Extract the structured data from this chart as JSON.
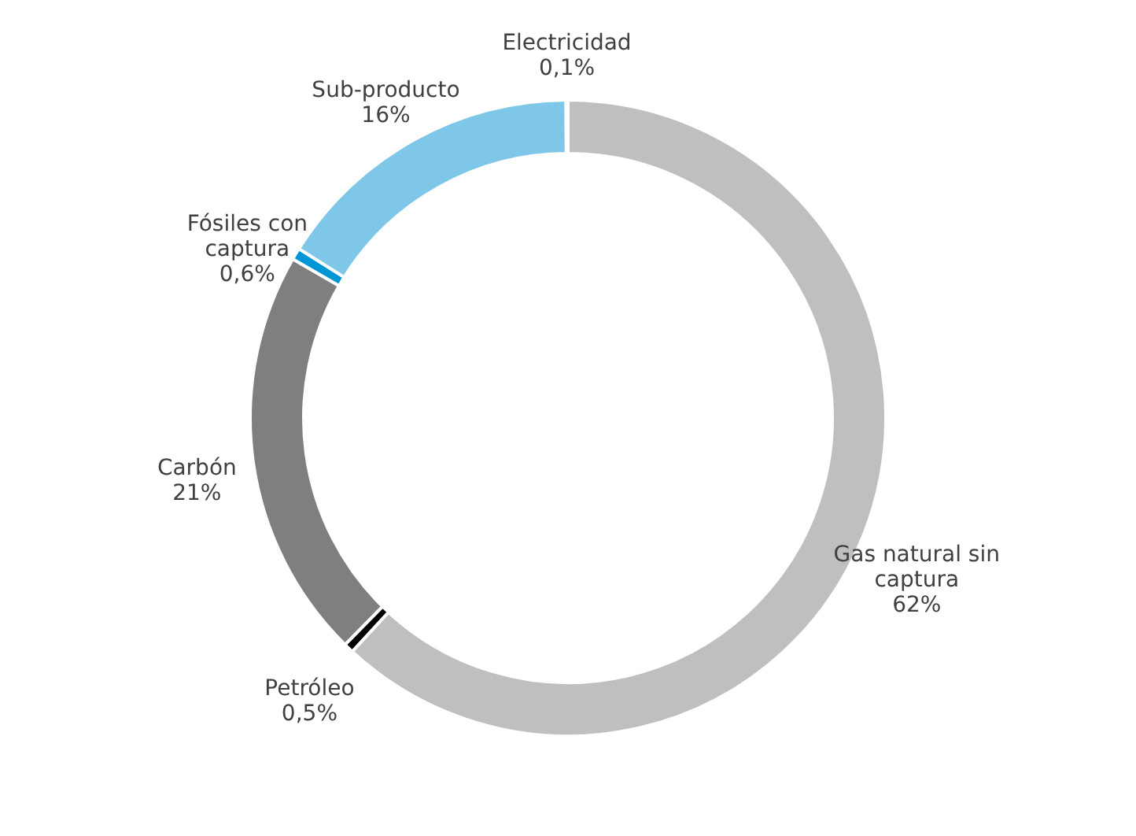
{
  "chart_data": {
    "type": "donut",
    "categories": [
      "Gas natural sin captura",
      "Petróleo",
      "Carbón",
      "Fósiles con captura",
      "Sub-producto",
      "Electricidad"
    ],
    "values": [
      62,
      0.5,
      21,
      0.6,
      16,
      0.1
    ],
    "value_labels": [
      "62%",
      "0,5%",
      "21%",
      "0,6%",
      "16%",
      "0,1%"
    ],
    "colors": [
      "#bfbfbf",
      "#000000",
      "#7f7f7f",
      "#0096d6",
      "#7fc7e8",
      "#d9d9d9"
    ],
    "legend": false
  }
}
